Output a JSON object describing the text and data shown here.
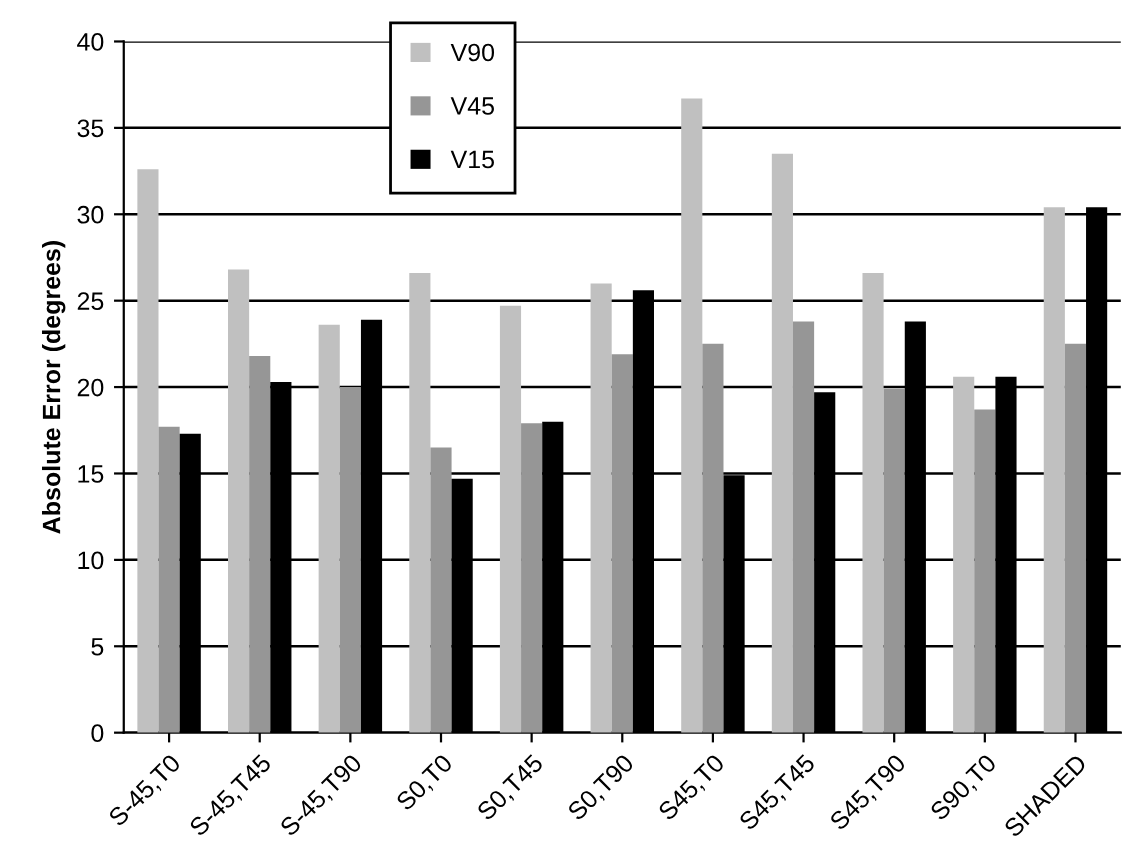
{
  "chart_data": {
    "type": "bar",
    "ylabel": "Absolute Error (degrees)",
    "categories": [
      "S-45,T0",
      "S-45,T45",
      "S-45,T90",
      "S0,T0",
      "S0,T45",
      "S0,T90",
      "S45,T0",
      "S45,T45",
      "S45,T90",
      "S90,T0",
      "SHADED"
    ],
    "series": [
      {
        "name": "V90",
        "color": "#c0c0c0",
        "values": [
          32.6,
          26.8,
          23.6,
          26.6,
          24.7,
          26.0,
          36.7,
          33.5,
          26.6,
          20.6,
          30.4
        ]
      },
      {
        "name": "V45",
        "color": "#969696",
        "values": [
          17.7,
          21.8,
          20.0,
          16.5,
          17.9,
          21.9,
          22.5,
          23.8,
          19.9,
          18.7,
          22.5
        ]
      },
      {
        "name": "V15",
        "color": "#000000",
        "values": [
          17.3,
          20.3,
          23.9,
          14.7,
          18.0,
          25.6,
          14.9,
          19.7,
          23.8,
          20.6,
          30.4
        ]
      }
    ],
    "ylim": [
      0,
      40
    ],
    "yticks": [
      0,
      5,
      10,
      15,
      20,
      25,
      30,
      35,
      40
    ],
    "grid": "y",
    "legend": "top"
  }
}
